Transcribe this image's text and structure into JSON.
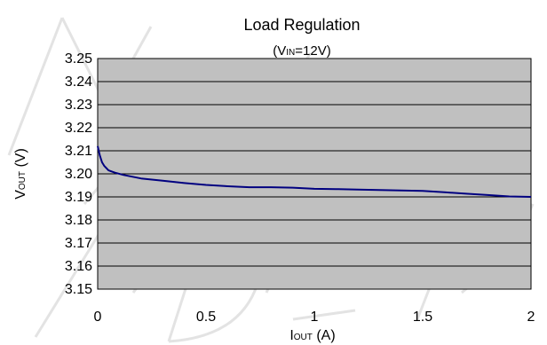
{
  "chart_data": {
    "type": "line",
    "title": "Load Regulation",
    "subtitle": {
      "prefix": "(V",
      "sub": "IN",
      "suffix": "=12V)"
    },
    "xlabel": {
      "main": "I",
      "sub": "OUT",
      "suffix": " (A)"
    },
    "ylabel": {
      "main": "V",
      "sub": "OUT",
      "suffix": " (V)"
    },
    "xlim": [
      0,
      2
    ],
    "ylim": [
      3.15,
      3.25
    ],
    "x_ticks": [
      0,
      0.5,
      1,
      1.5,
      2
    ],
    "x_tick_labels": [
      "0",
      "0.5",
      "1",
      "1.5",
      "2"
    ],
    "y_ticks": [
      3.15,
      3.16,
      3.17,
      3.18,
      3.19,
      3.2,
      3.21,
      3.22,
      3.23,
      3.24,
      3.25
    ],
    "y_tick_labels": [
      "3.15",
      "3.16",
      "3.17",
      "3.18",
      "3.19",
      "3.20",
      "3.21",
      "3.22",
      "3.23",
      "3.24",
      "3.25"
    ],
    "grid": true,
    "legend": false,
    "plot_background": "#c0c0c0",
    "line_color": "#000080",
    "series": [
      {
        "x": [
          0.0,
          0.01,
          0.02,
          0.03,
          0.05,
          0.08,
          0.12,
          0.2,
          0.3,
          0.4,
          0.5,
          0.6,
          0.7,
          0.8,
          0.9,
          1.0,
          1.1,
          1.2,
          1.3,
          1.4,
          1.5,
          1.6,
          1.7,
          1.8,
          1.9,
          2.0
        ],
        "y": [
          3.212,
          3.208,
          3.205,
          3.2035,
          3.2015,
          3.2005,
          3.1995,
          3.198,
          3.197,
          3.196,
          3.1952,
          3.1946,
          3.1942,
          3.1942,
          3.194,
          3.1935,
          3.1934,
          3.1932,
          3.193,
          3.1928,
          3.1926,
          3.192,
          3.1914,
          3.1908,
          3.1902,
          3.19
        ]
      }
    ],
    "watermark": "NOT RECOMMENDED FOR NEW DESIGNS"
  }
}
